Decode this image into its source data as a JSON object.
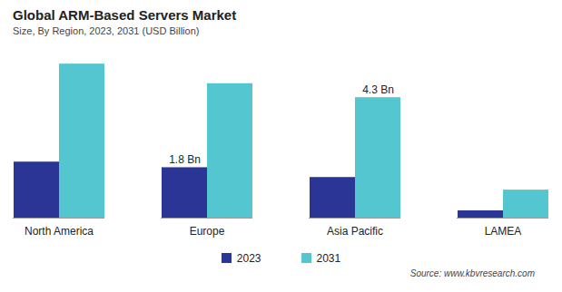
{
  "chart_data": {
    "type": "bar",
    "title": "Global ARM-Based Servers Market",
    "subtitle": "Size, By Region, 2023, 2031 (USD Billion)",
    "source": "Source: www.kbvresearch.com",
    "categories": [
      "North America",
      "Europe",
      "Asia Pacific",
      "LAMEA"
    ],
    "series": [
      {
        "name": "2023",
        "color": "#2b3595",
        "values": [
          2.0,
          1.8,
          1.45,
          0.26
        ],
        "value_labels": [
          null,
          "1.8 Bn",
          null,
          null
        ]
      },
      {
        "name": "2031",
        "color": "#53c6d0",
        "values": [
          5.5,
          4.8,
          4.3,
          1.0
        ],
        "value_labels": [
          null,
          null,
          "4.3 Bn",
          null
        ]
      }
    ],
    "ylim": [
      0,
      5.7
    ],
    "tick_labels": "x",
    "grid": false,
    "legend": "bottom"
  }
}
